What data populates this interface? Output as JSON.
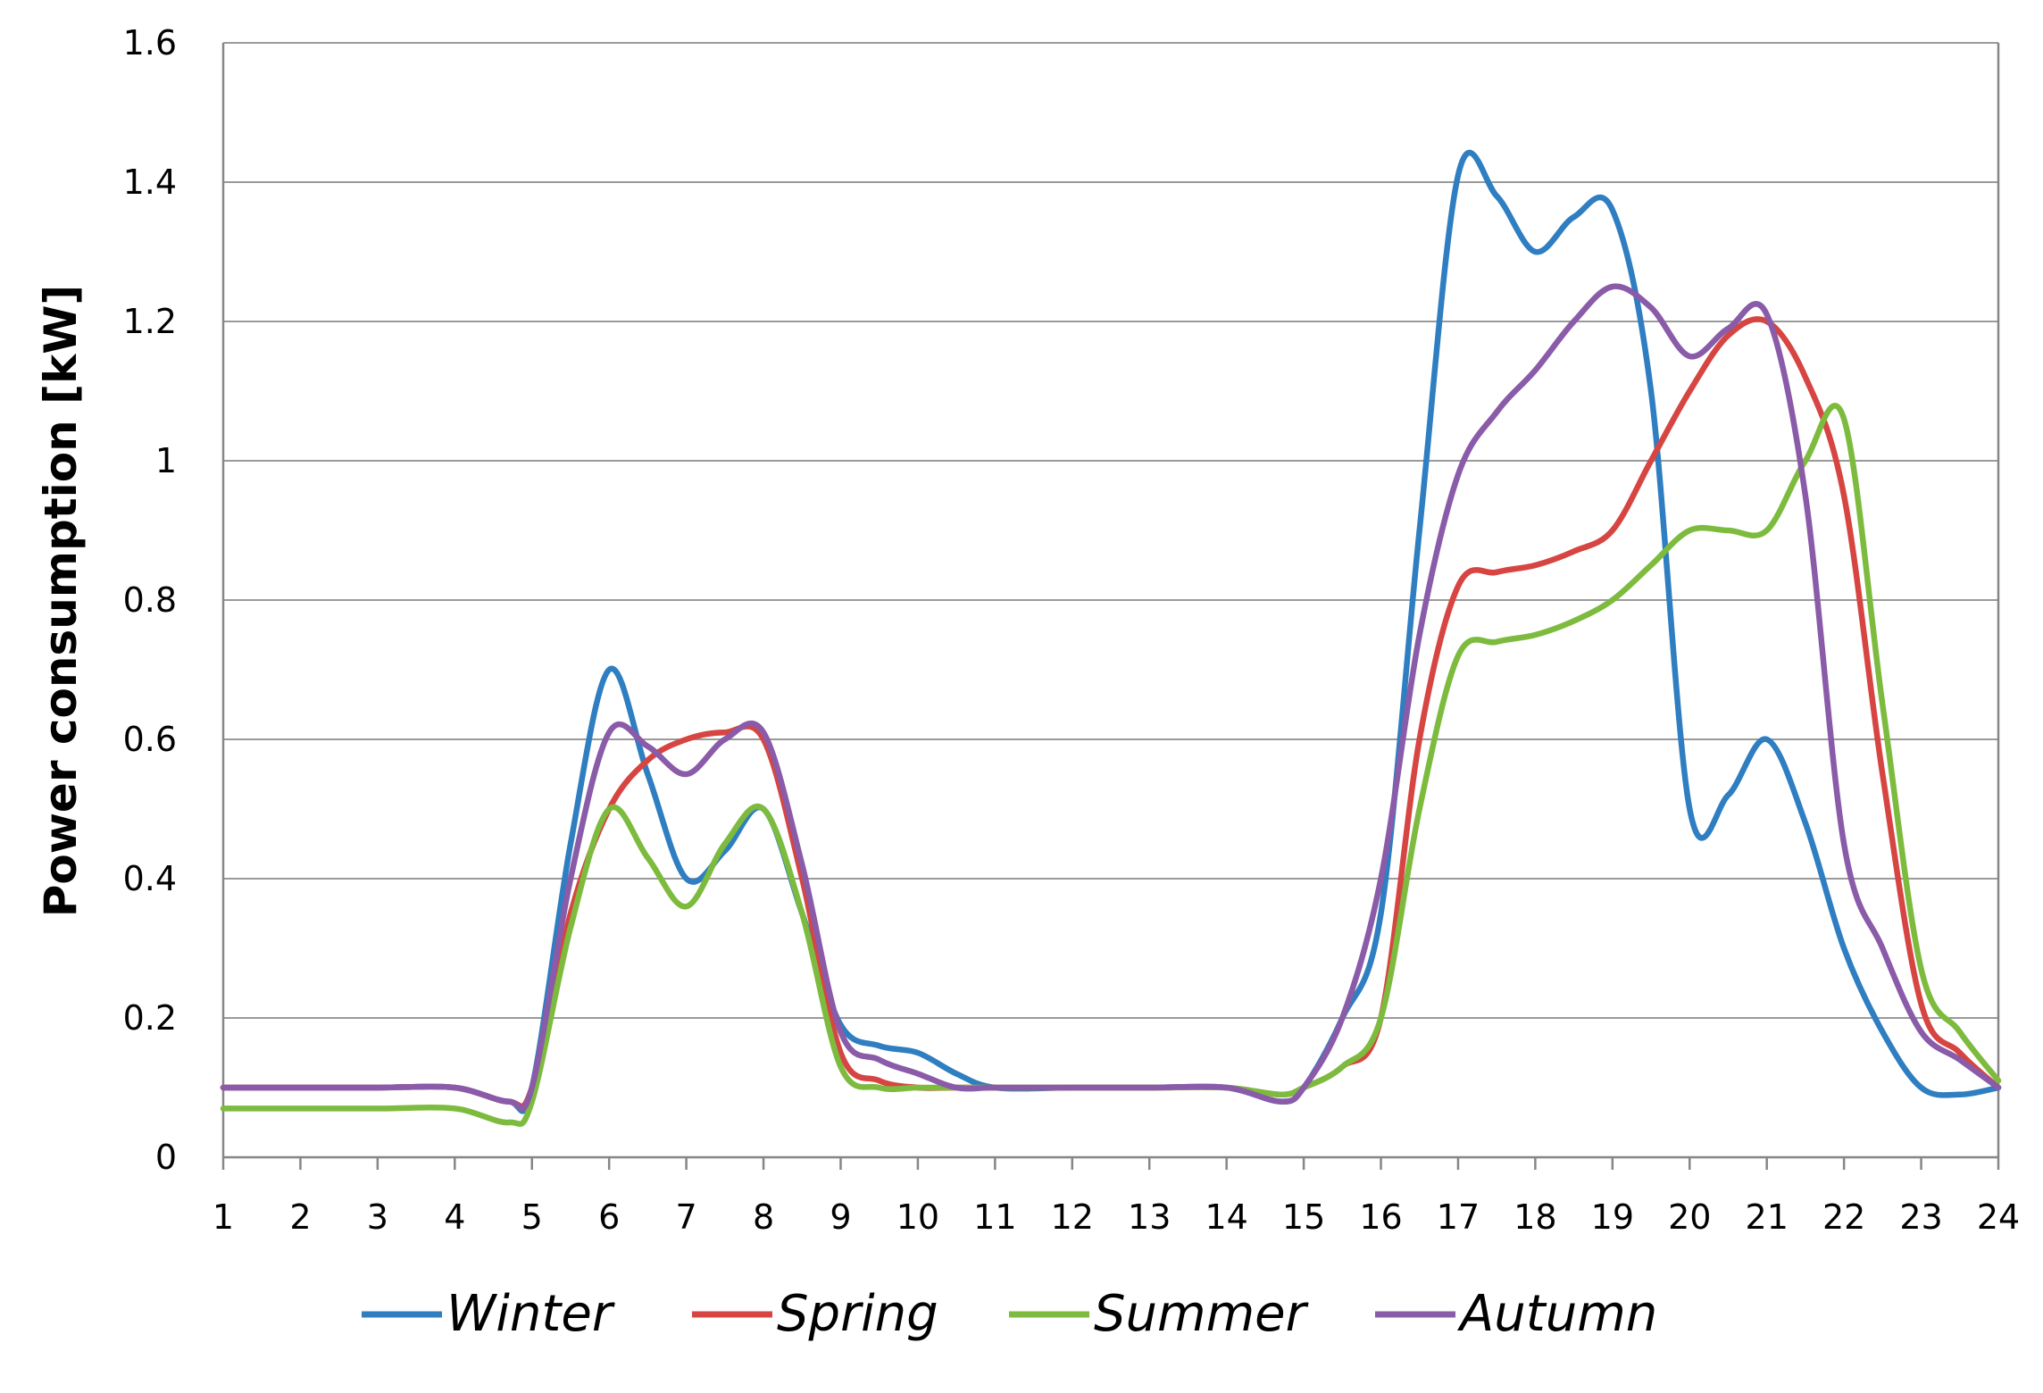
{
  "chart_data": {
    "type": "line",
    "title": "",
    "xlabel": "",
    "ylabel": "Power consumption [kW]",
    "x": [
      1,
      2,
      3,
      4,
      5,
      6,
      7,
      8,
      9,
      10,
      11,
      12,
      13,
      14,
      15,
      16,
      17,
      18,
      19,
      20,
      21,
      22,
      23,
      24
    ],
    "xlim": [
      1,
      24
    ],
    "ylim": [
      0,
      1.6
    ],
    "y_ticks": [
      "0",
      "0.2",
      "0.4",
      "0.6",
      "0.8",
      "1",
      "1.2",
      "1.4",
      "1.6"
    ],
    "x_ticks": [
      "1",
      "2",
      "3",
      "4",
      "5",
      "6",
      "7",
      "8",
      "9",
      "10",
      "11",
      "12",
      "13",
      "14",
      "15",
      "16",
      "17",
      "18",
      "19",
      "20",
      "21",
      "22",
      "23",
      "24"
    ],
    "grid": "horizontal",
    "legend_position": "bottom",
    "series": [
      {
        "name": "Winter",
        "color": "#2E7EC1",
        "points": [
          [
            1,
            0.1
          ],
          [
            2,
            0.1
          ],
          [
            3,
            0.1
          ],
          [
            4,
            0.1
          ],
          [
            4.7,
            0.08
          ],
          [
            5,
            0.1
          ],
          [
            5.5,
            0.45
          ],
          [
            6,
            0.7
          ],
          [
            6.5,
            0.55
          ],
          [
            7,
            0.4
          ],
          [
            7.5,
            0.44
          ],
          [
            8,
            0.5
          ],
          [
            8.5,
            0.35
          ],
          [
            9,
            0.19
          ],
          [
            9.5,
            0.16
          ],
          [
            10,
            0.15
          ],
          [
            10.5,
            0.12
          ],
          [
            11,
            0.1
          ],
          [
            12,
            0.1
          ],
          [
            13,
            0.1
          ],
          [
            14,
            0.1
          ],
          [
            14.7,
            0.08
          ],
          [
            15,
            0.1
          ],
          [
            15.5,
            0.2
          ],
          [
            16,
            0.35
          ],
          [
            16.5,
            0.9
          ],
          [
            17,
            1.41
          ],
          [
            17.5,
            1.38
          ],
          [
            18,
            1.3
          ],
          [
            18.5,
            1.35
          ],
          [
            19,
            1.36
          ],
          [
            19.5,
            1.1
          ],
          [
            20,
            0.5
          ],
          [
            20.5,
            0.52
          ],
          [
            21,
            0.6
          ],
          [
            21.5,
            0.48
          ],
          [
            22,
            0.3
          ],
          [
            22.5,
            0.18
          ],
          [
            23,
            0.1
          ],
          [
            23.5,
            0.09
          ],
          [
            24,
            0.1
          ]
        ]
      },
      {
        "name": "Spring",
        "color": "#D64541",
        "points": [
          [
            1,
            0.1
          ],
          [
            2,
            0.1
          ],
          [
            3,
            0.1
          ],
          [
            4,
            0.1
          ],
          [
            4.7,
            0.08
          ],
          [
            5,
            0.1
          ],
          [
            5.5,
            0.35
          ],
          [
            6,
            0.5
          ],
          [
            6.5,
            0.57
          ],
          [
            7,
            0.6
          ],
          [
            7.5,
            0.61
          ],
          [
            8,
            0.6
          ],
          [
            8.5,
            0.4
          ],
          [
            9,
            0.15
          ],
          [
            9.5,
            0.11
          ],
          [
            10,
            0.1
          ],
          [
            10.5,
            0.1
          ],
          [
            11,
            0.1
          ],
          [
            12,
            0.1
          ],
          [
            13,
            0.1
          ],
          [
            14,
            0.1
          ],
          [
            14.7,
            0.09
          ],
          [
            15,
            0.1
          ],
          [
            15.5,
            0.13
          ],
          [
            16,
            0.2
          ],
          [
            16.5,
            0.6
          ],
          [
            17,
            0.82
          ],
          [
            17.5,
            0.84
          ],
          [
            18,
            0.85
          ],
          [
            18.5,
            0.87
          ],
          [
            19,
            0.9
          ],
          [
            19.5,
            1.0
          ],
          [
            20,
            1.1
          ],
          [
            20.5,
            1.18
          ],
          [
            21,
            1.2
          ],
          [
            21.5,
            1.12
          ],
          [
            22,
            0.95
          ],
          [
            22.5,
            0.55
          ],
          [
            23,
            0.22
          ],
          [
            23.5,
            0.15
          ],
          [
            24,
            0.1
          ]
        ]
      },
      {
        "name": "Summer",
        "color": "#7DBB3E",
        "points": [
          [
            1,
            0.07
          ],
          [
            2,
            0.07
          ],
          [
            3,
            0.07
          ],
          [
            4,
            0.07
          ],
          [
            4.7,
            0.05
          ],
          [
            5,
            0.08
          ],
          [
            5.5,
            0.33
          ],
          [
            6,
            0.5
          ],
          [
            6.5,
            0.43
          ],
          [
            7,
            0.36
          ],
          [
            7.5,
            0.45
          ],
          [
            8,
            0.5
          ],
          [
            8.5,
            0.35
          ],
          [
            9,
            0.13
          ],
          [
            9.5,
            0.1
          ],
          [
            10,
            0.1
          ],
          [
            10.5,
            0.1
          ],
          [
            11,
            0.1
          ],
          [
            12,
            0.1
          ],
          [
            13,
            0.1
          ],
          [
            14,
            0.1
          ],
          [
            14.7,
            0.09
          ],
          [
            15,
            0.1
          ],
          [
            15.5,
            0.13
          ],
          [
            16,
            0.2
          ],
          [
            16.5,
            0.5
          ],
          [
            17,
            0.72
          ],
          [
            17.5,
            0.74
          ],
          [
            18,
            0.75
          ],
          [
            18.5,
            0.77
          ],
          [
            19,
            0.8
          ],
          [
            19.5,
            0.85
          ],
          [
            20,
            0.9
          ],
          [
            20.5,
            0.9
          ],
          [
            21,
            0.9
          ],
          [
            21.5,
            1.0
          ],
          [
            22,
            1.06
          ],
          [
            22.5,
            0.65
          ],
          [
            23,
            0.27
          ],
          [
            23.5,
            0.18
          ],
          [
            24,
            0.11
          ]
        ]
      },
      {
        "name": "Autumn",
        "color": "#8A5BA8",
        "points": [
          [
            1,
            0.1
          ],
          [
            2,
            0.1
          ],
          [
            3,
            0.1
          ],
          [
            4,
            0.1
          ],
          [
            4.7,
            0.08
          ],
          [
            5,
            0.1
          ],
          [
            5.5,
            0.4
          ],
          [
            6,
            0.61
          ],
          [
            6.5,
            0.59
          ],
          [
            7,
            0.55
          ],
          [
            7.5,
            0.6
          ],
          [
            8,
            0.61
          ],
          [
            8.5,
            0.42
          ],
          [
            9,
            0.18
          ],
          [
            9.5,
            0.14
          ],
          [
            10,
            0.12
          ],
          [
            10.5,
            0.1
          ],
          [
            11,
            0.1
          ],
          [
            12,
            0.1
          ],
          [
            13,
            0.1
          ],
          [
            14,
            0.1
          ],
          [
            14.7,
            0.08
          ],
          [
            15,
            0.1
          ],
          [
            15.5,
            0.2
          ],
          [
            16,
            0.4
          ],
          [
            16.5,
            0.75
          ],
          [
            17,
            0.98
          ],
          [
            17.5,
            1.07
          ],
          [
            18,
            1.13
          ],
          [
            18.5,
            1.2
          ],
          [
            19,
            1.25
          ],
          [
            19.5,
            1.22
          ],
          [
            20,
            1.15
          ],
          [
            20.5,
            1.19
          ],
          [
            21,
            1.21
          ],
          [
            21.5,
            0.95
          ],
          [
            22,
            0.45
          ],
          [
            22.5,
            0.3
          ],
          [
            23,
            0.18
          ],
          [
            23.5,
            0.14
          ],
          [
            24,
            0.1
          ]
        ]
      }
    ]
  }
}
